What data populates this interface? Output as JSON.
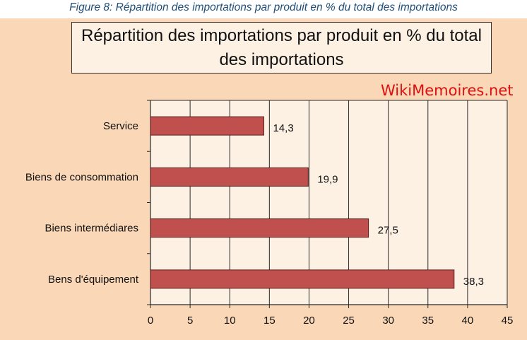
{
  "caption": "Figure 8: Répartition des importations par produit en % du total des importations",
  "watermark": "WikiMemoires.net",
  "chart_data": {
    "type": "bar",
    "orientation": "horizontal",
    "title": "Répartition des importations par produit en % du total des importations",
    "categories": [
      "Service",
      "Biens de consommation",
      "Biens intermédiares",
      "Bens d'équipement"
    ],
    "values": [
      14.3,
      19.9,
      27.5,
      38.3
    ],
    "value_labels": [
      "14,3",
      "19,9",
      "27,5",
      "38,3"
    ],
    "xlim": [
      0,
      45
    ],
    "xticks": [
      0,
      5,
      10,
      15,
      20,
      25,
      30,
      35,
      40,
      45
    ],
    "xlabel": "",
    "ylabel": "",
    "grid": true,
    "colors": {
      "bar": "#c0504d",
      "bar_border": "#5a1f1f",
      "plot_bg": "#fdf1e4",
      "chart_bg": "#fad8b7",
      "grid": "#2a2a2a"
    }
  }
}
